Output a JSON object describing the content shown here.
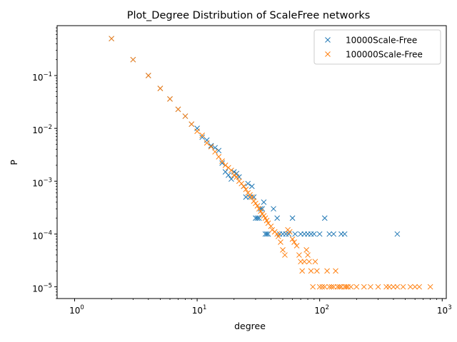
{
  "chart_data": {
    "type": "scatter",
    "title": "Plot_Degree Distribution of ScaleFree networks",
    "xlabel": "degree",
    "ylabel": "P",
    "xscale": "log",
    "yscale": "log",
    "xlim": [
      0.72,
      1080
    ],
    "ylim": [
      6e-06,
      0.88
    ],
    "xticks": [
      {
        "base": "10",
        "exp": "0",
        "value": 1
      },
      {
        "base": "10",
        "exp": "1",
        "value": 10
      },
      {
        "base": "10",
        "exp": "2",
        "value": 100
      },
      {
        "base": "10",
        "exp": "3",
        "value": 1000
      }
    ],
    "yticks": [
      {
        "base": "10",
        "exp": "−5",
        "value": 1e-05
      },
      {
        "base": "10",
        "exp": "−4",
        "value": 0.0001
      },
      {
        "base": "10",
        "exp": "−3",
        "value": 0.001
      },
      {
        "base": "10",
        "exp": "−2",
        "value": 0.01
      },
      {
        "base": "10",
        "exp": "−1",
        "value": 0.1
      }
    ],
    "legend_position": "top-right",
    "series": [
      {
        "name": "10000Scale-Free",
        "color": "#1f77b4",
        "marker": "x",
        "points": [
          [
            2,
            0.5
          ],
          [
            3,
            0.2
          ],
          [
            4,
            0.1
          ],
          [
            5,
            0.057
          ],
          [
            6,
            0.036
          ],
          [
            7,
            0.023
          ],
          [
            8,
            0.017
          ],
          [
            9,
            0.012
          ],
          [
            10,
            0.01
          ],
          [
            11,
            0.0068
          ],
          [
            12,
            0.006
          ],
          [
            13,
            0.0047
          ],
          [
            14,
            0.0043
          ],
          [
            15,
            0.0038
          ],
          [
            16,
            0.0022
          ],
          [
            17,
            0.0015
          ],
          [
            18,
            0.0013
          ],
          [
            19,
            0.0011
          ],
          [
            20,
            0.0015
          ],
          [
            21,
            0.0014
          ],
          [
            22,
            0.0012
          ],
          [
            24,
            0.0008
          ],
          [
            25,
            0.0005
          ],
          [
            26,
            0.0009
          ],
          [
            27,
            0.0005
          ],
          [
            28,
            0.0008
          ],
          [
            29,
            0.0005
          ],
          [
            30,
            0.0002
          ],
          [
            31,
            0.0002
          ],
          [
            32,
            0.0002
          ],
          [
            33,
            0.0003
          ],
          [
            34,
            0.0003
          ],
          [
            35,
            0.0004
          ],
          [
            36,
            0.0001
          ],
          [
            37,
            0.0001
          ],
          [
            38,
            0.0001
          ],
          [
            42,
            0.0003
          ],
          [
            45,
            0.0002
          ],
          [
            47,
            0.0001
          ],
          [
            50,
            0.0001
          ],
          [
            53,
            0.0001
          ],
          [
            56,
            0.0001
          ],
          [
            60,
            0.0002
          ],
          [
            63,
            0.0001
          ],
          [
            70,
            0.0001
          ],
          [
            75,
            0.0001
          ],
          [
            80,
            0.0001
          ],
          [
            85,
            0.0001
          ],
          [
            90,
            0.0001
          ],
          [
            100,
            0.0001
          ],
          [
            110,
            0.0002
          ],
          [
            120,
            0.0001
          ],
          [
            130,
            0.0001
          ],
          [
            150,
            0.0001
          ],
          [
            160,
            0.0001
          ],
          [
            430,
            0.0001
          ]
        ]
      },
      {
        "name": "100000Scale-Free",
        "color": "#ff7f0e",
        "marker": "x",
        "points": [
          [
            2,
            0.5
          ],
          [
            3,
            0.2
          ],
          [
            4,
            0.1
          ],
          [
            5,
            0.057
          ],
          [
            6,
            0.036
          ],
          [
            7,
            0.023
          ],
          [
            8,
            0.017
          ],
          [
            9,
            0.012
          ],
          [
            10,
            0.0088
          ],
          [
            11,
            0.0074
          ],
          [
            12,
            0.0053
          ],
          [
            13,
            0.0045
          ],
          [
            14,
            0.0036
          ],
          [
            15,
            0.0029
          ],
          [
            16,
            0.0024
          ],
          [
            17,
            0.002
          ],
          [
            18,
            0.0018
          ],
          [
            19,
            0.0016
          ],
          [
            20,
            0.0013
          ],
          [
            21,
            0.0012
          ],
          [
            22,
            0.001
          ],
          [
            23,
            0.0009
          ],
          [
            24,
            0.0008
          ],
          [
            25,
            0.0007
          ],
          [
            26,
            0.0006
          ],
          [
            27,
            0.00055
          ],
          [
            28,
            0.0005
          ],
          [
            29,
            0.00042
          ],
          [
            30,
            0.00038
          ],
          [
            31,
            0.00034
          ],
          [
            32,
            0.0003
          ],
          [
            33,
            0.00027
          ],
          [
            34,
            0.00024
          ],
          [
            35,
            0.00022
          ],
          [
            36,
            0.0002
          ],
          [
            37,
            0.00018
          ],
          [
            38,
            0.00016
          ],
          [
            40,
            0.00014
          ],
          [
            41,
            0.00012
          ],
          [
            43,
            0.00011
          ],
          [
            45,
            0.0001
          ],
          [
            46,
            9e-05
          ],
          [
            48,
            7e-05
          ],
          [
            50,
            5e-05
          ],
          [
            52,
            4e-05
          ],
          [
            55,
            0.00012
          ],
          [
            57,
            0.00011
          ],
          [
            60,
            8e-05
          ],
          [
            62,
            7e-05
          ],
          [
            65,
            6e-05
          ],
          [
            68,
            4e-05
          ],
          [
            70,
            3e-05
          ],
          [
            72,
            2e-05
          ],
          [
            75,
            3e-05
          ],
          [
            78,
            5e-05
          ],
          [
            80,
            4e-05
          ],
          [
            82,
            3e-05
          ],
          [
            85,
            2e-05
          ],
          [
            88,
            1e-05
          ],
          [
            92,
            3e-05
          ],
          [
            95,
            2e-05
          ],
          [
            100,
            1e-05
          ],
          [
            105,
            1e-05
          ],
          [
            110,
            1e-05
          ],
          [
            115,
            2e-05
          ],
          [
            120,
            1e-05
          ],
          [
            125,
            1e-05
          ],
          [
            130,
            1e-05
          ],
          [
            135,
            2e-05
          ],
          [
            140,
            1e-05
          ],
          [
            145,
            1e-05
          ],
          [
            150,
            1e-05
          ],
          [
            160,
            1e-05
          ],
          [
            165,
            1e-05
          ],
          [
            170,
            1e-05
          ],
          [
            180,
            1e-05
          ],
          [
            200,
            1e-05
          ],
          [
            230,
            1e-05
          ],
          [
            260,
            1e-05
          ],
          [
            300,
            1e-05
          ],
          [
            350,
            1e-05
          ],
          [
            370,
            1e-05
          ],
          [
            400,
            1e-05
          ],
          [
            430,
            1e-05
          ],
          [
            480,
            1e-05
          ],
          [
            550,
            1e-05
          ],
          [
            600,
            1e-05
          ],
          [
            650,
            1e-05
          ],
          [
            800,
            1e-05
          ]
        ]
      }
    ]
  }
}
